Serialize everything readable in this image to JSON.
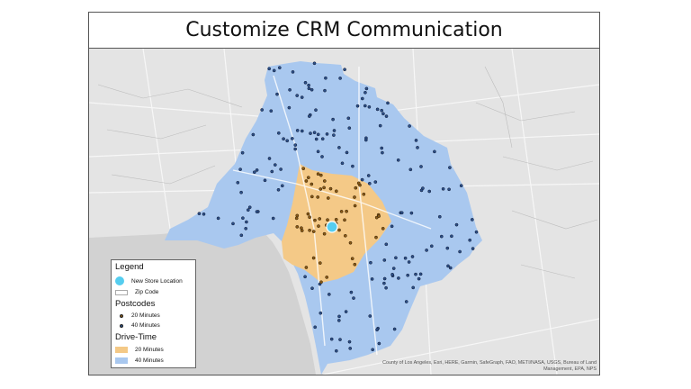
{
  "title": "Customize CRM Communication",
  "legend": {
    "title": "Legend",
    "store_label": "New Store Location",
    "zip_label": "Zip Code",
    "postcodes_title": "Postcodes",
    "postcode_20": "20 Minutes",
    "postcode_40": "40 Minutes",
    "drivetime_title": "Drive-Time",
    "drivetime_20": "20 Minutes",
    "drivetime_40": "40 Minutes"
  },
  "credits": {
    "line1": "County of Los Angeles, Esri, HERE, Garmin, SafeGraph, FAO, METI/NASA, USGS, Bureau of Land",
    "line2": "Management, EPA, NPS"
  },
  "colors": {
    "land": "#e4e4e4",
    "water": "#d2d2d2",
    "drive_40": "#a9c8ef",
    "drive_20": "#f4c987",
    "store": "#55cdef",
    "point_20": "#8a5a16",
    "point_40": "#2b4f88",
    "title_border": "#555555"
  }
}
